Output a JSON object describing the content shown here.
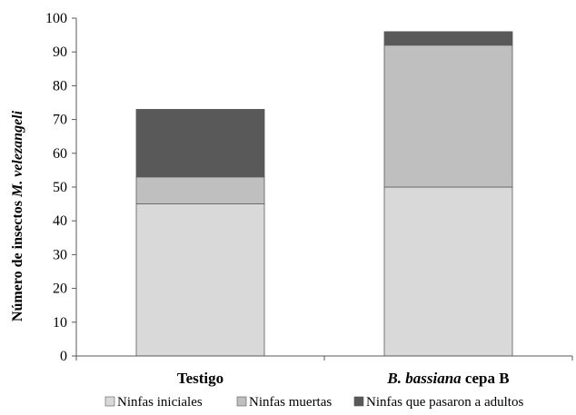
{
  "chart_data": {
    "type": "bar",
    "stacked": true,
    "categories": [
      "Testigo",
      "B. bassiana cepa B"
    ],
    "category_label_parts": [
      [
        {
          "text": "Testigo",
          "italic": false
        }
      ],
      [
        {
          "text": "B. bassiana",
          "italic": true
        },
        {
          "text": " cepa B",
          "italic": false
        }
      ]
    ],
    "series": [
      {
        "name": "Ninfas iniciales",
        "values": [
          45,
          50
        ],
        "color": "#d9d9d9"
      },
      {
        "name": "Ninfas muertas",
        "values": [
          8,
          42
        ],
        "color": "#bfbfbf"
      },
      {
        "name": "Ninfas que pasaron a adultos",
        "values": [
          20,
          4
        ],
        "color": "#595959"
      }
    ],
    "ylim": [
      0,
      100
    ],
    "yticks": [
      0,
      10,
      20,
      30,
      40,
      50,
      60,
      70,
      80,
      90,
      100
    ],
    "ylabel_parts": [
      {
        "text": "Número de insectos ",
        "italic": false
      },
      {
        "text": "M. velezangeli",
        "italic": true
      }
    ],
    "xlabel": "",
    "title": "",
    "grid": false,
    "legend_position": "bottom"
  }
}
